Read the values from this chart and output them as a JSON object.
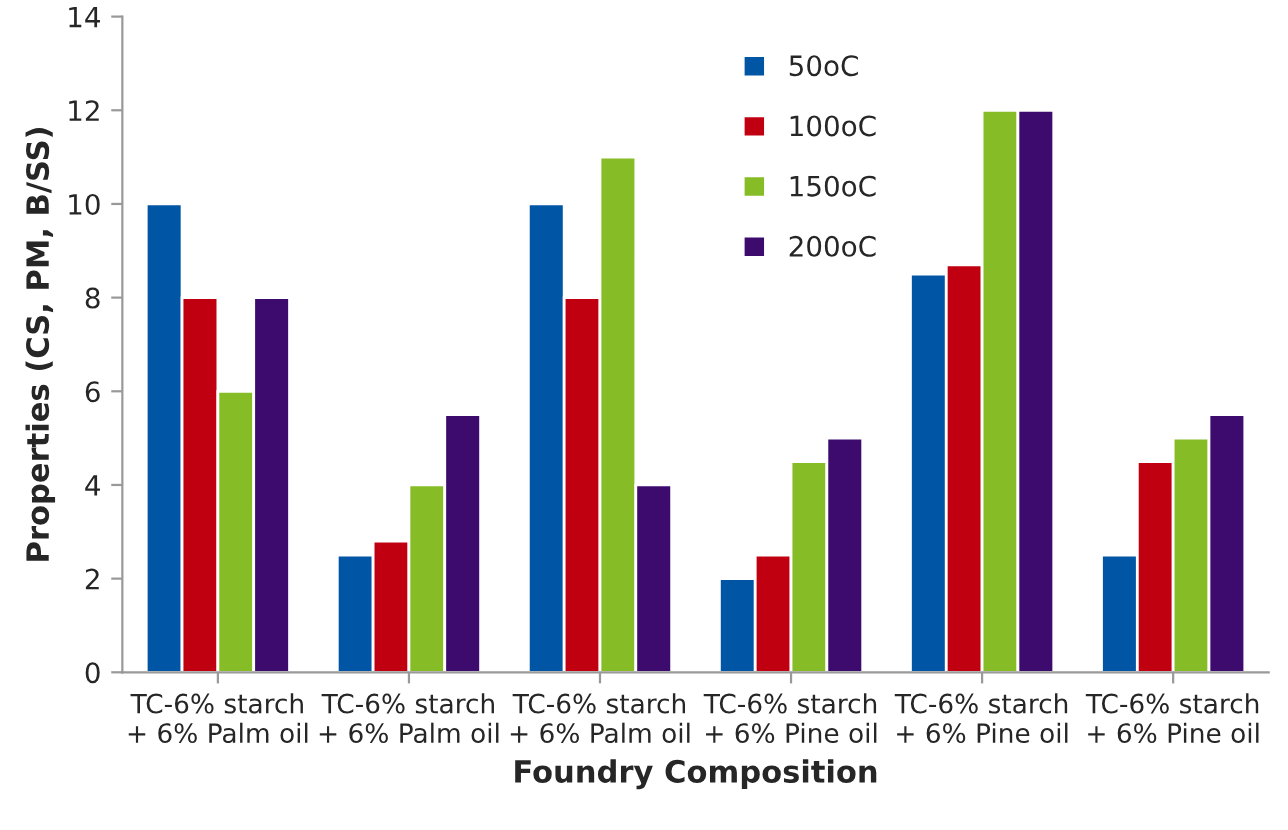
{
  "chart_data": {
    "type": "bar",
    "xlabel": "Foundry Composition",
    "ylabel": "Properties (CS, PM, B/SS)",
    "categories": [
      "TC-6% starch\n+ 6% Palm oil",
      "TC-6% starch\n+ 6% Palm oil",
      "TC-6% starch\n+ 6% Palm oil",
      "TC-6% starch\n+ 6% Pine oil",
      "TC-6% starch\n+ 6% Pine oil",
      "TC-6% starch\n+ 6% Pine oil"
    ],
    "series": [
      {
        "name": "50oC",
        "color": "#0055a5",
        "values": [
          10,
          2.5,
          10,
          2,
          8.5,
          2.5
        ]
      },
      {
        "name": "100oC",
        "color": "#c00010",
        "values": [
          8,
          2.8,
          8,
          2.5,
          8.7,
          4.5
        ]
      },
      {
        "name": "150oC",
        "color": "#86bc25",
        "values": [
          6,
          4,
          11,
          4.5,
          12,
          5
        ]
      },
      {
        "name": "200oC",
        "color": "#3d0a6e",
        "values": [
          8,
          5.5,
          4,
          5,
          12,
          5.5
        ]
      }
    ],
    "ylim": [
      0,
      14
    ],
    "yticks": [
      0,
      2,
      4,
      6,
      8,
      10,
      12,
      14
    ],
    "legend": "top",
    "grid": false
  }
}
